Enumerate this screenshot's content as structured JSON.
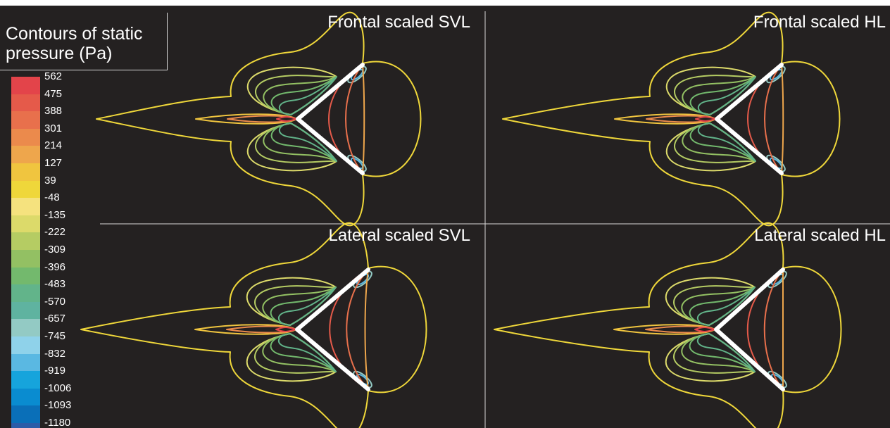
{
  "legend": {
    "title_line1": "Contours of static",
    "title_line2": "pressure (Pa)",
    "levels": [
      {
        "label": "562",
        "color": "#e3444a"
      },
      {
        "label": "475",
        "color": "#e55a4a"
      },
      {
        "label": "388",
        "color": "#e8704c"
      },
      {
        "label": "301",
        "color": "#eb8a4c"
      },
      {
        "label": "214",
        "color": "#eea64c"
      },
      {
        "label": "127",
        "color": "#f0c53f"
      },
      {
        "label": "39",
        "color": "#efd73a"
      },
      {
        "label": "-48",
        "color": "#f5e27e"
      },
      {
        "label": "-135",
        "color": "#dcda6a"
      },
      {
        "label": "-222",
        "color": "#b5cc63"
      },
      {
        "label": "-309",
        "color": "#93c063"
      },
      {
        "label": "-396",
        "color": "#73b96d"
      },
      {
        "label": "-483",
        "color": "#62b48a"
      },
      {
        "label": "-570",
        "color": "#5fb3a0"
      },
      {
        "label": "-657",
        "color": "#93cac4"
      },
      {
        "label": "-745",
        "color": "#8fd2ea"
      },
      {
        "label": "-832",
        "color": "#5ab8e2"
      },
      {
        "label": "-919",
        "color": "#16a4dc"
      },
      {
        "label": "-1006",
        "color": "#0a8cd0"
      },
      {
        "label": "-1093",
        "color": "#0a6fb8"
      },
      {
        "label": "-1180",
        "color": "#2b5ca8"
      }
    ]
  },
  "panels": [
    {
      "title": "Frontal scaled SVL"
    },
    {
      "title": "Frontal scaled HL"
    },
    {
      "title": "Lateral scaled SVL"
    },
    {
      "title": "Lateral scaled HL"
    }
  ],
  "colors": {
    "background": "#242121",
    "divider": "#d8d8d8",
    "body": "#ffffff"
  }
}
